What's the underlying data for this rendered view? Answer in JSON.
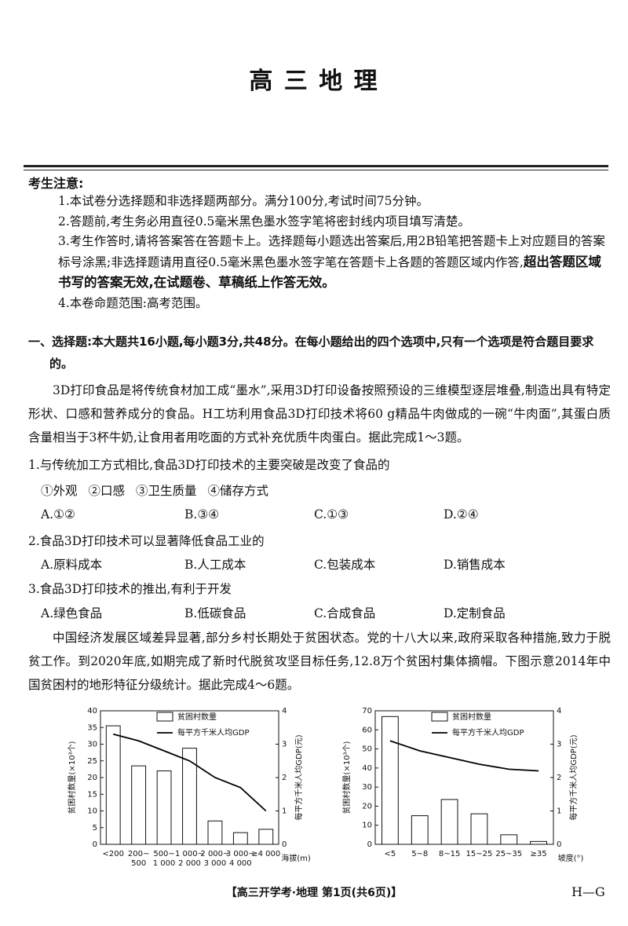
{
  "header": {
    "title": "高 三 地 理"
  },
  "notice": {
    "title": "考生注意:",
    "items": [
      "1.本试卷分选择题和非选择题两部分。满分100分,考试时间75分钟。",
      "2.答题前,考生务必用直径0.5毫米黑色墨水签字笔将密封线内项目填写清楚。",
      {
        "text": "3.考生作答时,请将答案答在答题卡上。选择题每小题选出答案后,用2B铅笔把答题卡上对应题目的答案标号涂黑;非选择题请用直径0.5毫米黑色墨水签字笔在答题卡上各题的答题区域内作答,",
        "emphasis": "超出答题区域书写的答案无效,在试题卷、草稿纸上作答无效。"
      },
      "4.本卷命题范围:高考范围。"
    ]
  },
  "section": {
    "heading": "一、选择题:本大题共16小题,每小题3分,共48分。在每小题给出的四个选项中,只有一个选项是符合题目要求的。",
    "passages": [
      "3D打印食品是将传统食材加工成“墨水”,采用3D打印设备按照预设的三维模型逐层堆叠,制造出具有特定形状、口感和营养成分的食品。H工坊利用食品3D打印技术将60 g精品牛肉做成的一碗“牛肉面”,其蛋白质含量相当于3杯牛奶,让食用者用吃面的方式补充优质牛肉蛋白。据此完成1～3题。",
      "中国经济发展区域差异显著,部分乡村长期处于贫困状态。党的十八大以来,政府采取各种措施,致力于脱贫工作。到2020年底,如期完成了新时代脱贫攻坚目标任务,12.8万个贫困村集体摘帽。下图示意2014年中国贫困村的地形特征分级统计。据此完成4～6题。"
    ],
    "questions": [
      {
        "stem": "1.与传统加工方式相比,食品3D打印技术的主要突破是改变了食品的",
        "statements": [
          "①外观",
          "②口感",
          "③卫生质量",
          "④储存方式"
        ],
        "options": [
          "A.①②",
          "B.③④",
          "C.①③",
          "D.②④"
        ]
      },
      {
        "stem": "2.食品3D打印技术可以显著降低食品工业的",
        "options": [
          "A.原料成本",
          "B.人工成本",
          "C.包装成本",
          "D.销售成本"
        ]
      },
      {
        "stem": "3.食品3D打印技术的推出,有利于开发",
        "options": [
          "A.绿色食品",
          "B.低碳食品",
          "C.合成食品",
          "D.定制食品"
        ]
      }
    ]
  },
  "figures": [
    {
      "type": "bar",
      "xlabel": "海拔(m)",
      "ylabel": "贫困村数量(×10³个)",
      "y2label": "每平方千米人均GDP(元)",
      "categories": [
        "<200",
        "200~500",
        "500~1 000",
        "1 000~2 000",
        "2 000~3 000",
        "3 000~4 000",
        "≥4 000"
      ],
      "series": [
        {
          "name": "贫困村数量",
          "type": "bar",
          "color": "#ffffff",
          "values": [
            35.5,
            23.5,
            22,
            28.8,
            7,
            3.5,
            4.5
          ]
        },
        {
          "name": "每平方千米人均GDP",
          "type": "line",
          "axis": "y2",
          "color": "#000000",
          "values": [
            3.3,
            3.1,
            2.8,
            2.5,
            2.0,
            1.7,
            1.0
          ]
        }
      ],
      "ylim": [
        0,
        40
      ],
      "yticks": [
        0,
        5,
        10,
        15,
        20,
        25,
        30,
        35,
        40
      ],
      "y2lim": [
        0,
        4
      ],
      "y2ticks": [
        0,
        1,
        2,
        3,
        4
      ]
    },
    {
      "type": "bar",
      "xlabel": "坡度(°)",
      "ylabel": "贫困村数量(×10³个)",
      "y2label": "每平方千米人均GDP(元)",
      "categories": [
        "<5",
        "5~8",
        "8~15",
        "15~25",
        "25~35",
        "≥35"
      ],
      "series": [
        {
          "name": "贫困村数量",
          "type": "bar",
          "color": "#ffffff",
          "values": [
            67,
            15,
            23.5,
            16,
            5,
            1.5
          ]
        },
        {
          "name": "每平方千米人均GDP",
          "type": "line",
          "axis": "y2",
          "color": "#000000",
          "values": [
            3.1,
            2.8,
            2.6,
            2.4,
            2.25,
            2.2
          ]
        }
      ],
      "ylim": [
        0,
        70
      ],
      "yticks": [
        0,
        10,
        20,
        30,
        40,
        50,
        60,
        70
      ],
      "y2lim": [
        0,
        4
      ],
      "y2ticks": [
        0,
        1,
        2,
        3,
        4
      ]
    }
  ],
  "footer": {
    "text": "【高三开学考·地理 第1页(共6页)】",
    "code": "H—G"
  }
}
